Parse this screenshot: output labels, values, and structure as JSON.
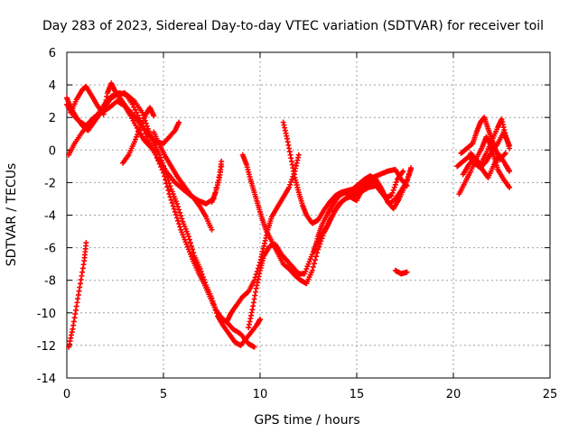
{
  "chart_data": {
    "type": "scatter",
    "title": "Day 283 of 2023, Sidereal Day-to-day VTEC variation (SDTVAR) for receiver toil",
    "xlabel": "GPS time / hours",
    "ylabel": "SDTVAR / TECUs",
    "xlim": [
      0,
      25
    ],
    "ylim": [
      -14,
      6
    ],
    "x_ticks": [
      "0",
      "5",
      "10",
      "15",
      "20",
      "25"
    ],
    "y_ticks": [
      "-14",
      "-12",
      "-10",
      "-8",
      "-6",
      "-4",
      "-2",
      "0",
      "2",
      "4",
      "6"
    ],
    "grid": true,
    "marker": "+",
    "color": "#ff0000",
    "series": [
      {
        "values": [
          [
            0.0,
            2.8
          ],
          [
            0.3,
            2.2
          ],
          [
            0.6,
            1.8
          ],
          [
            1.0,
            1.5
          ],
          [
            1.4,
            2.0
          ],
          [
            1.8,
            2.3
          ],
          [
            2.2,
            2.6
          ],
          [
            2.6,
            3.0
          ],
          [
            3.0,
            2.7
          ],
          [
            3.3,
            2.1
          ],
          [
            3.7,
            1.2
          ],
          [
            4.0,
            0.6
          ],
          [
            4.4,
            0.1
          ],
          [
            4.8,
            -0.7
          ],
          [
            5.2,
            -1.4
          ],
          [
            5.6,
            -2.0
          ],
          [
            6.0,
            -2.4
          ],
          [
            6.4,
            -2.8
          ],
          [
            6.8,
            -3.1
          ],
          [
            7.2,
            -3.3
          ],
          [
            7.6,
            -3.0
          ],
          [
            8.0,
            -1.0
          ]
        ]
      },
      {
        "values": [
          [
            0.1,
            -0.3
          ],
          [
            0.4,
            0.4
          ],
          [
            0.8,
            1.1
          ],
          [
            1.2,
            1.7
          ],
          [
            1.6,
            2.2
          ],
          [
            2.0,
            2.9
          ],
          [
            2.3,
            3.3
          ],
          [
            2.7,
            3.5
          ],
          [
            3.1,
            3.4
          ],
          [
            3.5,
            3.0
          ],
          [
            3.9,
            2.3
          ],
          [
            4.2,
            1.3
          ],
          [
            4.5,
            0.4
          ],
          [
            4.8,
            -0.3
          ],
          [
            5.1,
            -1.3
          ],
          [
            5.4,
            -2.4
          ],
          [
            5.7,
            -3.3
          ],
          [
            6.0,
            -4.4
          ],
          [
            6.3,
            -5.3
          ],
          [
            6.6,
            -6.5
          ],
          [
            6.9,
            -7.3
          ],
          [
            7.2,
            -8.3
          ],
          [
            7.5,
            -9.1
          ],
          [
            7.8,
            -10.2
          ],
          [
            8.1,
            -10.8
          ],
          [
            8.4,
            -11.3
          ],
          [
            8.7,
            -11.8
          ],
          [
            9.0,
            -12.0
          ],
          [
            9.4,
            -11.4
          ],
          [
            9.8,
            -10.8
          ],
          [
            10.0,
            -10.4
          ]
        ]
      },
      {
        "values": [
          [
            0.1,
            -12.1
          ],
          [
            0.3,
            -11.0
          ],
          [
            0.5,
            -9.6
          ],
          [
            0.7,
            -8.2
          ],
          [
            0.9,
            -6.8
          ],
          [
            1.0,
            -5.7
          ]
        ]
      },
      {
        "values": [
          [
            0.0,
            3.2
          ],
          [
            0.2,
            2.6
          ],
          [
            0.5,
            2.0
          ],
          [
            0.8,
            1.5
          ],
          [
            1.1,
            1.2
          ],
          [
            1.4,
            1.7
          ],
          [
            1.7,
            2.2
          ],
          [
            2.0,
            2.7
          ],
          [
            2.3,
            3.2
          ],
          [
            2.6,
            3.4
          ],
          [
            3.0,
            3.5
          ],
          [
            3.4,
            2.8
          ],
          [
            3.8,
            1.8
          ],
          [
            4.2,
            0.6
          ],
          [
            4.6,
            -0.3
          ],
          [
            5.0,
            -1.4
          ],
          [
            5.3,
            -2.7
          ],
          [
            5.6,
            -3.8
          ],
          [
            5.9,
            -4.9
          ],
          [
            6.2,
            -5.8
          ],
          [
            6.5,
            -6.7
          ],
          [
            6.8,
            -7.5
          ],
          [
            7.1,
            -8.2
          ],
          [
            7.4,
            -9.0
          ],
          [
            7.7,
            -9.8
          ],
          [
            8.0,
            -10.3
          ],
          [
            8.3,
            -10.6
          ],
          [
            8.6,
            -11.0
          ],
          [
            9.0,
            -11.3
          ],
          [
            9.4,
            -11.9
          ],
          [
            9.7,
            -12.1
          ]
        ]
      },
      {
        "values": [
          [
            0.2,
            2.3
          ],
          [
            0.5,
            3.1
          ],
          [
            0.8,
            3.7
          ],
          [
            1.0,
            3.9
          ],
          [
            1.3,
            3.3
          ],
          [
            1.6,
            2.7
          ],
          [
            1.9,
            2.2
          ],
          [
            2.1,
            3.5
          ],
          [
            2.3,
            4.1
          ],
          [
            2.5,
            3.6
          ],
          [
            2.8,
            3.1
          ],
          [
            3.1,
            2.6
          ],
          [
            3.4,
            2.2
          ],
          [
            3.8,
            1.6
          ],
          [
            4.2,
            1.0
          ],
          [
            4.6,
            0.5
          ],
          [
            5.0,
            0.4
          ],
          [
            5.3,
            0.8
          ],
          [
            5.6,
            1.2
          ],
          [
            5.8,
            1.7
          ]
        ]
      },
      {
        "values": [
          [
            2.9,
            -0.8
          ],
          [
            3.2,
            -0.3
          ],
          [
            3.5,
            0.5
          ],
          [
            3.8,
            1.4
          ],
          [
            4.1,
            2.2
          ],
          [
            4.3,
            2.6
          ],
          [
            4.5,
            2.1
          ]
        ]
      },
      {
        "values": [
          [
            4.5,
            1.1
          ],
          [
            4.8,
            0.3
          ],
          [
            5.1,
            -0.4
          ],
          [
            5.4,
            -1.0
          ],
          [
            5.7,
            -1.6
          ],
          [
            6.0,
            -2.1
          ],
          [
            6.3,
            -2.6
          ],
          [
            6.6,
            -3.0
          ],
          [
            6.9,
            -3.5
          ],
          [
            7.2,
            -4.1
          ],
          [
            7.5,
            -4.9
          ]
        ]
      },
      {
        "values": [
          [
            7.5,
            -3.2
          ],
          [
            7.7,
            -2.6
          ],
          [
            7.9,
            -1.7
          ],
          [
            8.0,
            -0.7
          ]
        ]
      },
      {
        "values": [
          [
            8.3,
            -10.5
          ],
          [
            8.5,
            -10.0
          ],
          [
            8.8,
            -9.5
          ],
          [
            9.1,
            -9.0
          ],
          [
            9.4,
            -8.7
          ],
          [
            9.7,
            -8.0
          ],
          [
            10.0,
            -6.9
          ],
          [
            10.2,
            -5.9
          ],
          [
            10.4,
            -4.9
          ],
          [
            10.6,
            -4.1
          ],
          [
            10.9,
            -3.5
          ],
          [
            11.2,
            -2.9
          ],
          [
            11.5,
            -2.3
          ],
          [
            11.8,
            -1.3
          ],
          [
            12.0,
            -0.3
          ]
        ]
      },
      {
        "values": [
          [
            9.1,
            -0.3
          ],
          [
            9.3,
            -0.9
          ],
          [
            9.5,
            -1.8
          ],
          [
            9.7,
            -2.6
          ],
          [
            9.9,
            -3.4
          ],
          [
            10.1,
            -4.2
          ],
          [
            10.3,
            -4.9
          ],
          [
            10.6,
            -5.6
          ],
          [
            10.9,
            -6.3
          ],
          [
            11.2,
            -7.0
          ],
          [
            11.5,
            -7.3
          ],
          [
            11.8,
            -7.7
          ],
          [
            12.1,
            -8.0
          ],
          [
            12.4,
            -8.2
          ],
          [
            12.7,
            -7.4
          ],
          [
            13.0,
            -6.1
          ],
          [
            13.3,
            -5.1
          ],
          [
            13.6,
            -4.4
          ],
          [
            13.9,
            -3.7
          ],
          [
            14.2,
            -3.2
          ],
          [
            14.6,
            -2.8
          ],
          [
            15.0,
            -2.5
          ],
          [
            15.4,
            -2.1
          ],
          [
            15.8,
            -1.7
          ],
          [
            16.2,
            -1.5
          ],
          [
            16.6,
            -1.3
          ],
          [
            17.0,
            -1.2
          ],
          [
            17.3,
            -1.8
          ],
          [
            17.6,
            -2.2
          ]
        ]
      },
      {
        "values": [
          [
            9.4,
            -10.9
          ],
          [
            9.6,
            -9.8
          ],
          [
            9.8,
            -8.5
          ],
          [
            10.0,
            -7.4
          ],
          [
            10.2,
            -6.5
          ],
          [
            10.5,
            -5.9
          ],
          [
            10.8,
            -5.8
          ],
          [
            11.1,
            -6.4
          ],
          [
            11.4,
            -6.8
          ],
          [
            11.7,
            -7.2
          ],
          [
            12.0,
            -7.6
          ],
          [
            12.3,
            -7.6
          ],
          [
            12.6,
            -6.7
          ],
          [
            12.9,
            -5.8
          ],
          [
            13.2,
            -5.2
          ],
          [
            13.5,
            -4.6
          ],
          [
            13.8,
            -3.8
          ],
          [
            14.1,
            -3.3
          ],
          [
            14.4,
            -3.0
          ],
          [
            14.8,
            -2.8
          ],
          [
            15.2,
            -2.6
          ],
          [
            15.6,
            -2.3
          ],
          [
            16.0,
            -2.2
          ],
          [
            16.4,
            -2.8
          ],
          [
            16.7,
            -3.3
          ],
          [
            17.0,
            -3.0
          ],
          [
            17.3,
            -2.5
          ],
          [
            17.6,
            -1.9
          ],
          [
            17.8,
            -1.2
          ]
        ]
      },
      {
        "values": [
          [
            11.2,
            1.7
          ],
          [
            11.4,
            0.7
          ],
          [
            11.6,
            -0.5
          ],
          [
            11.8,
            -1.7
          ],
          [
            12.0,
            -2.6
          ],
          [
            12.2,
            -3.4
          ],
          [
            12.4,
            -4.0
          ],
          [
            12.7,
            -4.5
          ],
          [
            13.0,
            -4.3
          ],
          [
            13.3,
            -3.7
          ],
          [
            13.6,
            -3.2
          ],
          [
            13.9,
            -2.8
          ],
          [
            14.2,
            -2.6
          ],
          [
            14.5,
            -2.5
          ],
          [
            14.8,
            -2.4
          ],
          [
            15.1,
            -2.1
          ],
          [
            15.4,
            -1.8
          ],
          [
            15.7,
            -1.6
          ],
          [
            16.0,
            -1.8
          ],
          [
            16.3,
            -2.4
          ],
          [
            16.6,
            -3.2
          ],
          [
            16.9,
            -3.6
          ],
          [
            17.2,
            -3.0
          ],
          [
            17.5,
            -2.2
          ],
          [
            17.8,
            -1.1
          ]
        ]
      },
      {
        "values": [
          [
            12.8,
            -6.2
          ],
          [
            13.0,
            -5.3
          ],
          [
            13.2,
            -4.6
          ],
          [
            13.5,
            -3.9
          ],
          [
            13.8,
            -3.3
          ],
          [
            14.1,
            -2.8
          ],
          [
            14.4,
            -2.6
          ],
          [
            14.7,
            -2.9
          ],
          [
            15.0,
            -3.1
          ],
          [
            15.3,
            -2.4
          ],
          [
            15.6,
            -2.0
          ],
          [
            15.9,
            -1.9
          ],
          [
            16.2,
            -2.3
          ],
          [
            16.5,
            -2.9
          ],
          [
            16.8,
            -2.8
          ],
          [
            17.1,
            -1.8
          ],
          [
            17.4,
            -1.3
          ]
        ]
      },
      {
        "values": [
          [
            17.0,
            -7.4
          ],
          [
            17.3,
            -7.6
          ],
          [
            17.6,
            -7.5
          ]
        ]
      },
      {
        "values": [
          [
            20.2,
            -1.0
          ],
          [
            20.5,
            -0.7
          ],
          [
            20.8,
            -0.4
          ],
          [
            21.1,
            -0.8
          ],
          [
            21.4,
            -1.1
          ],
          [
            21.7,
            -0.7
          ],
          [
            22.0,
            -0.1
          ],
          [
            22.3,
            0.4
          ],
          [
            22.6,
            1.1
          ],
          [
            22.9,
            0.3
          ]
        ]
      },
      {
        "values": [
          [
            20.3,
            -2.7
          ],
          [
            20.6,
            -2.0
          ],
          [
            20.9,
            -1.3
          ],
          [
            21.2,
            -0.5
          ],
          [
            21.5,
            0.2
          ],
          [
            21.7,
            0.8
          ],
          [
            21.9,
            0.4
          ],
          [
            22.1,
            -0.4
          ],
          [
            22.3,
            -1.2
          ],
          [
            22.6,
            -1.8
          ],
          [
            22.9,
            -2.3
          ]
        ]
      },
      {
        "values": [
          [
            20.4,
            -0.2
          ],
          [
            20.7,
            0.1
          ],
          [
            21.0,
            0.4
          ],
          [
            21.2,
            1.1
          ],
          [
            21.4,
            1.7
          ],
          [
            21.6,
            2.0
          ],
          [
            21.8,
            1.3
          ],
          [
            22.0,
            0.6
          ],
          [
            22.2,
            0.0
          ],
          [
            22.4,
            -0.6
          ],
          [
            22.7,
            -0.2
          ]
        ]
      },
      {
        "values": [
          [
            20.5,
            -1.5
          ],
          [
            20.8,
            -0.9
          ],
          [
            21.1,
            -0.5
          ],
          [
            21.4,
            -0.9
          ],
          [
            21.7,
            -0.2
          ],
          [
            22.0,
            0.6
          ],
          [
            22.3,
            1.4
          ],
          [
            22.5,
            1.9
          ],
          [
            22.7,
            0.9
          ],
          [
            22.9,
            0.1
          ]
        ]
      },
      {
        "values": [
          [
            20.9,
            -0.2
          ],
          [
            21.2,
            -0.6
          ],
          [
            21.5,
            -1.2
          ],
          [
            21.8,
            -1.7
          ],
          [
            22.1,
            -0.9
          ],
          [
            22.4,
            -0.3
          ],
          [
            22.7,
            -0.9
          ],
          [
            22.9,
            -1.3
          ]
        ]
      }
    ]
  }
}
